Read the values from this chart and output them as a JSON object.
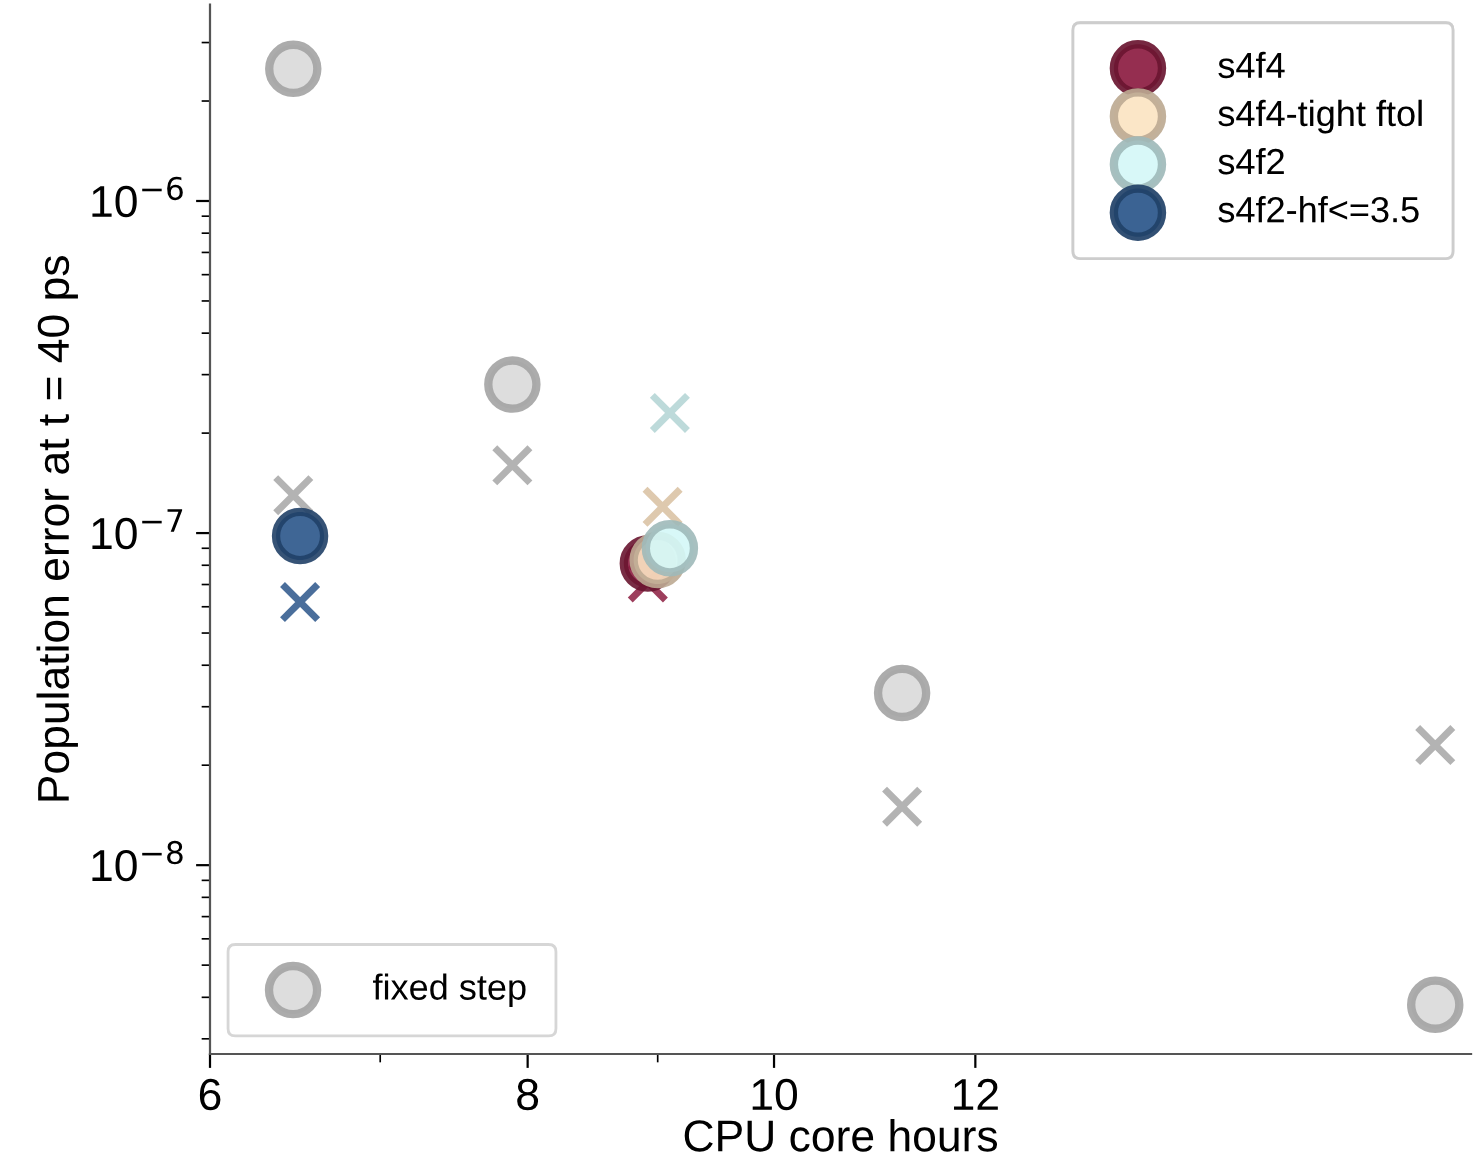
{
  "chart_data": {
    "type": "scatter",
    "xlabel": "CPU core hours",
    "ylabel": "Population error at t = 40 ps",
    "log": "xy",
    "xlim": [
      6,
      18.8
    ],
    "ylim": [
      2.7e-09,
      3.9e-06
    ],
    "xticks": [
      6,
      8,
      10,
      12
    ],
    "yticks": [
      {
        "value": 1e-08,
        "label": "10$^{−8}$"
      },
      {
        "value": 1e-07,
        "label": "10$^{−7}$"
      },
      {
        "value": 1e-06,
        "label": "10$^{−6}$"
      }
    ],
    "grid": false,
    "legend": "top right",
    "series": [
      {
        "name": "fixed step",
        "color": "#d9d9d9",
        "marker": "circle",
        "x": [
          6.47,
          7.89,
          11.23,
          18.2
        ],
        "values": [
          2.5e-06,
          2.8e-07,
          3.3e-08,
          3.8e-09
        ]
      },
      {
        "color": "#a6a6a6",
        "marker": "cross",
        "x": [
          6.47,
          7.89,
          11.23,
          18.2
        ],
        "values": [
          1.3e-07,
          1.6e-07,
          1.5e-08,
          2.3e-08
        ]
      },
      {
        "name": "s4f4",
        "color": "#8c1c40",
        "marker": "circle",
        "x": [
          8.92
        ],
        "values": [
          8.1e-08
        ]
      },
      {
        "color": "#8c1c40",
        "marker": "cross",
        "x": [
          8.92
        ],
        "values": [
          7.1e-08
        ]
      },
      {
        "name": "s4f4-tight ftol",
        "color": "#fbe3c2",
        "marker": "circle",
        "x": [
          9.0
        ],
        "values": [
          8.3e-08
        ]
      },
      {
        "color": "#d8bfa0",
        "marker": "cross",
        "x": [
          9.04
        ],
        "values": [
          1.2e-07
        ]
      },
      {
        "name": "s4f2",
        "color": "#d4f7f7",
        "marker": "circle",
        "x": [
          9.1
        ],
        "values": [
          9e-08
        ]
      },
      {
        "color": "#b2d4d4",
        "marker": "cross",
        "x": [
          9.1
        ],
        "values": [
          2.3e-07
        ]
      },
      {
        "name": "s4f2-hf<=3.5",
        "color": "#2a5589",
        "marker": "circle",
        "x": [
          6.51
        ],
        "values": [
          9.8e-08
        ]
      },
      {
        "color": "#2a5589",
        "marker": "cross",
        "x": [
          6.51
        ],
        "values": [
          6.2e-08
        ]
      }
    ]
  }
}
